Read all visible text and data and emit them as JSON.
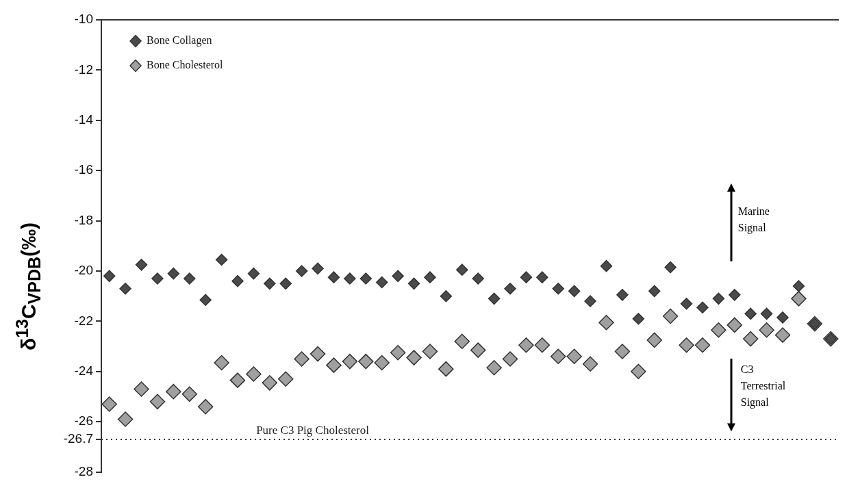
{
  "chart_data": {
    "type": "scatter",
    "ylabel": "δ$^{13}$C$_{VPDB}$(‰)",
    "categories": [
      null,
      null,
      null,
      null,
      null,
      null,
      null,
      null,
      null,
      null,
      null,
      null,
      null,
      null,
      null,
      null,
      null,
      null,
      null,
      null,
      null,
      null,
      null,
      null,
      null,
      null,
      null,
      null,
      null,
      null,
      null,
      null,
      null,
      null,
      null,
      null,
      null,
      null,
      null,
      null,
      null,
      null,
      null,
      null,
      null,
      null
    ],
    "series": [
      {
        "name": "Bone Collagen",
        "color": "#4a4a4a",
        "values": [
          -20.2,
          -20.7,
          -19.75,
          -20.3,
          -20.1,
          -20.3,
          -21.15,
          -19.55,
          -20.4,
          -20.1,
          -20.5,
          -20.5,
          -20.0,
          -19.9,
          -20.25,
          -20.3,
          -20.3,
          -20.45,
          -20.2,
          -20.5,
          -20.25,
          -21.0,
          -19.95,
          -20.3,
          -21.1,
          -20.7,
          -20.25,
          -20.25,
          -20.7,
          -20.8,
          -21.2,
          -19.8,
          -20.95,
          -21.9,
          -20.8,
          -19.85,
          -21.3,
          -21.45,
          -21.1,
          -20.95,
          -21.7,
          -21.7,
          -21.85,
          -20.6,
          -22.1,
          -22.7
        ]
      },
      {
        "name": "Bone Cholesterol",
        "color": "#a0a0a0",
        "values": [
          -25.3,
          -25.9,
          -24.7,
          -25.2,
          -24.8,
          -24.9,
          -25.4,
          -23.65,
          -24.35,
          -24.1,
          -24.45,
          -24.3,
          -23.5,
          -23.3,
          -23.75,
          -23.6,
          -23.6,
          -23.65,
          -23.25,
          -23.45,
          -23.2,
          -23.9,
          -22.8,
          -23.15,
          -23.85,
          -23.5,
          -22.95,
          -22.95,
          -23.4,
          -23.4,
          -23.7,
          -22.05,
          -23.2,
          -24.0,
          -22.75,
          -21.8,
          -22.95,
          -22.95,
          -22.35,
          -22.15,
          -22.7,
          -22.35,
          -22.55,
          -21.1,
          -22.1,
          -22.7
        ]
      }
    ],
    "ylim": [
      -28,
      -10
    ],
    "yticks": [
      -10,
      -12,
      -14,
      -16,
      -18,
      -20,
      -22,
      -24,
      -26,
      -26.7,
      -28
    ],
    "ref_lines": [
      {
        "axis": "y",
        "value": -26.7,
        "label": "Pure C3 Pig Cholesterol",
        "color": "#333333",
        "line_style": "dotted"
      }
    ],
    "annotations": [
      "Marine Signal",
      "C3 Terrestrial Signal"
    ],
    "marker": "diamond",
    "grid": false,
    "legend": "top left",
    "tick_labels": "y"
  }
}
